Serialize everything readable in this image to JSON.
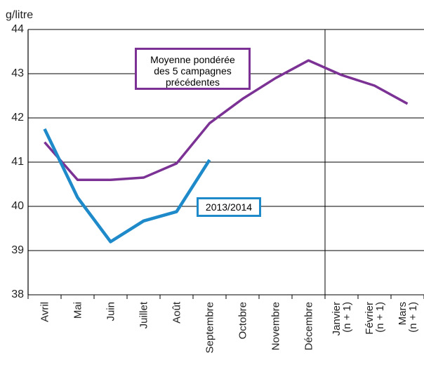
{
  "chart_data": {
    "type": "line",
    "ylabel": "g/litre",
    "categories": [
      "Avril",
      "Mai",
      "Juin",
      "Juillet",
      "Août",
      "Septembre",
      "Octobre",
      "Novembre",
      "Décembre",
      "Janvier\n(n + 1)",
      "Février\n(n + 1)",
      "Mars\n(n + 1)"
    ],
    "series": [
      {
        "name": "Moyenne pondérée\ndes 5 campagnes\nprécédentes",
        "color": "#7b3294",
        "values": [
          41.45,
          40.6,
          40.6,
          40.65,
          40.97,
          41.88,
          42.43,
          42.9,
          43.3,
          42.97,
          42.73,
          42.32
        ]
      },
      {
        "name": "2013/2014",
        "color": "#1f8ac9",
        "values": [
          41.75,
          40.2,
          39.2,
          39.67,
          39.88,
          41.05,
          null,
          null,
          null,
          null,
          null,
          null
        ]
      }
    ],
    "ylim": [
      38,
      44
    ],
    "yticks": [
      38,
      39,
      40,
      41,
      42,
      43,
      44
    ],
    "grid": true
  }
}
